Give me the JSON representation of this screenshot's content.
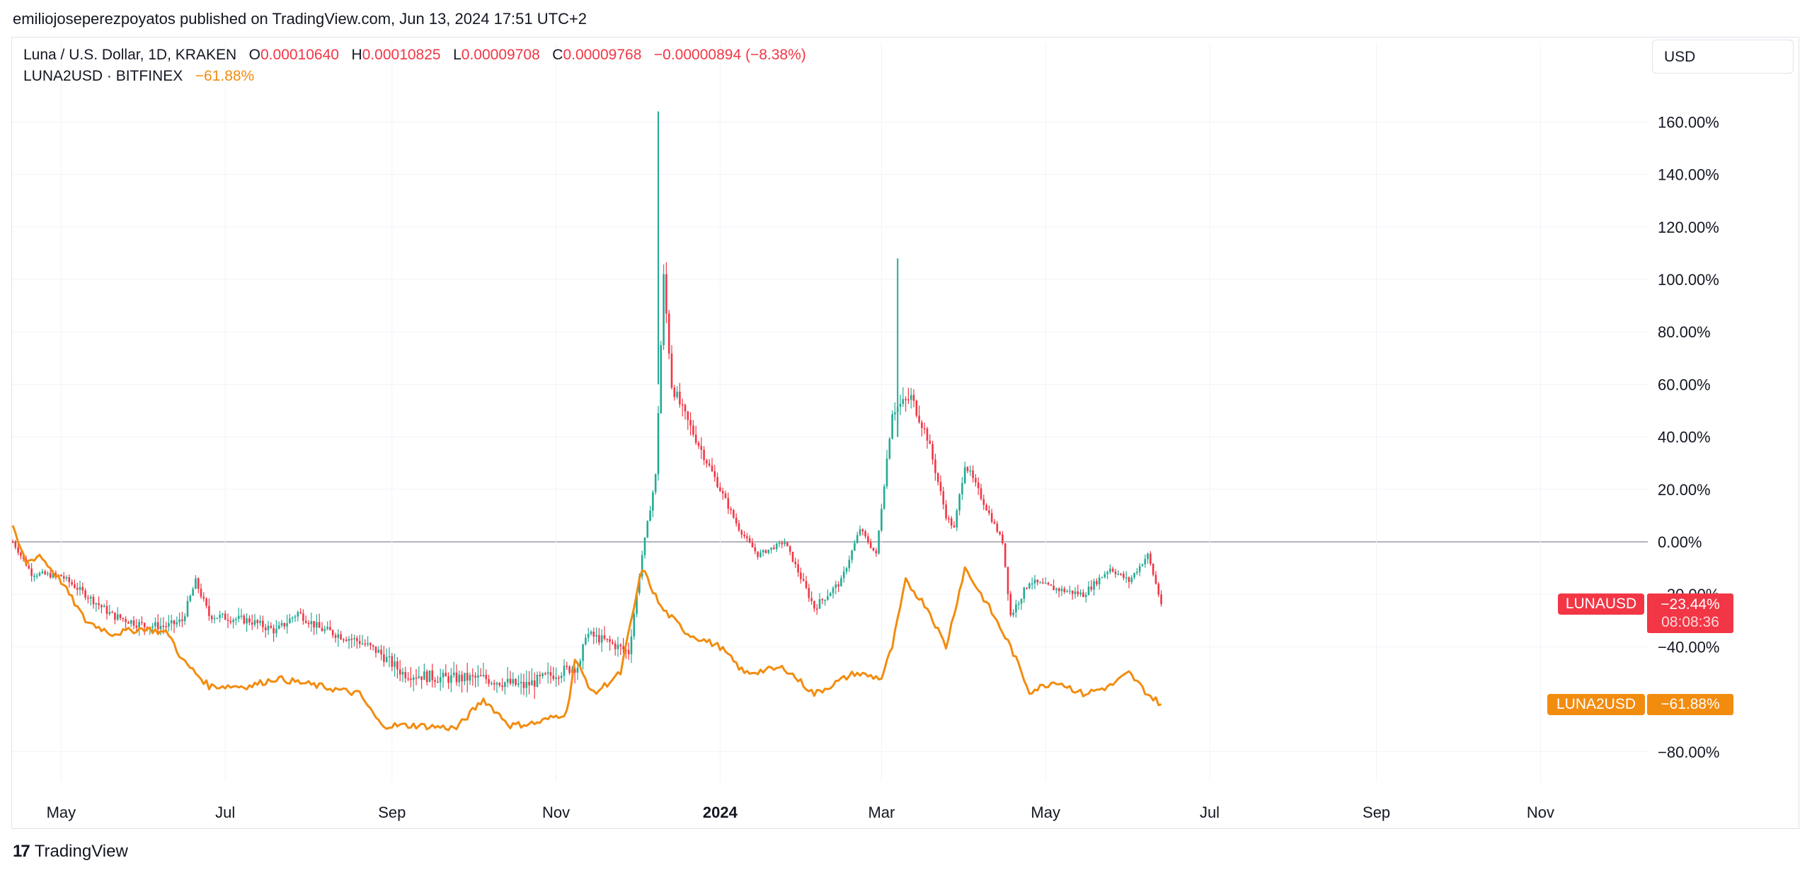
{
  "header": {
    "published": "emiliojoseperezpoyatos published on TradingView.com, Jun 13, 2024 17:51 UTC+2"
  },
  "legend": {
    "main_symbol": "Luna / U.S. Dollar, 1D, KRAKEN",
    "o_label": "O",
    "o_value": "0.00010640",
    "h_label": "H",
    "h_value": "0.00010825",
    "l_label": "L",
    "l_value": "0.00009708",
    "c_label": "C",
    "c_value": "0.00009768",
    "change": "−0.00000894 (−8.38%)",
    "compare_symbol": "LUNA2USD · BITFINEX",
    "compare_change": "−61.88%"
  },
  "currency_label": "USD",
  "tags": {
    "luna_name": "LUNAUSD",
    "luna_value": "−23.44%",
    "luna_countdown": "08:08:36",
    "luna2_name": "LUNA2USD",
    "luna2_value": "−61.88%"
  },
  "footer": {
    "logo_mark": "17",
    "brand": "TradingView"
  },
  "colors": {
    "up": "#22ab94",
    "down": "#f23645",
    "compare": "#f28c0f",
    "zero_line": "#b2b5be",
    "grid": "#f0f3fa"
  },
  "chart_data": {
    "type": "line",
    "y_axis": {
      "ylim": [
        -90,
        170
      ],
      "ticks": [
        160,
        140,
        120,
        100,
        80,
        60,
        40,
        20,
        0,
        -20,
        -40,
        -80
      ],
      "tick_labels": [
        "160.00%",
        "140.00%",
        "120.00%",
        "100.00%",
        "80.00%",
        "60.00%",
        "40.00%",
        "20.00%",
        "0.00%",
        "−20.00%",
        "−40.00%",
        "−80.00%"
      ]
    },
    "x_axis": {
      "range": [
        "2023-04-13",
        "2024-12-28"
      ],
      "ticks": [
        {
          "date": "2023-05-01",
          "label": "May",
          "bold": false
        },
        {
          "date": "2023-07-01",
          "label": "Jul",
          "bold": false
        },
        {
          "date": "2023-09-01",
          "label": "Sep",
          "bold": false
        },
        {
          "date": "2023-11-01",
          "label": "Nov",
          "bold": false
        },
        {
          "date": "2024-01-01",
          "label": "2024",
          "bold": true
        },
        {
          "date": "2024-03-01",
          "label": "Mar",
          "bold": false
        },
        {
          "date": "2024-05-01",
          "label": "May",
          "bold": false
        },
        {
          "date": "2024-07-01",
          "label": "Jul",
          "bold": false
        },
        {
          "date": "2024-09-01",
          "label": "Sep",
          "bold": false
        },
        {
          "date": "2024-11-01",
          "label": "Nov",
          "bold": false
        }
      ]
    },
    "series": [
      {
        "name": "Luna / U.S. Dollar, 1D, KRAKEN",
        "style": "candlestick",
        "points": [
          [
            "2023-04-13",
            0
          ],
          [
            "2023-04-20",
            -12
          ],
          [
            "2023-05-01",
            -13
          ],
          [
            "2023-05-10",
            -20
          ],
          [
            "2023-05-20",
            -28
          ],
          [
            "2023-06-01",
            -32
          ],
          [
            "2023-06-10",
            -32
          ],
          [
            "2023-06-15",
            -30
          ],
          [
            "2023-06-20",
            -15
          ],
          [
            "2023-06-25",
            -28
          ],
          [
            "2023-07-10",
            -30
          ],
          [
            "2023-07-20",
            -34
          ],
          [
            "2023-07-28",
            -27
          ],
          [
            "2023-08-05",
            -33
          ],
          [
            "2023-08-20",
            -38
          ],
          [
            "2023-08-27",
            -42
          ],
          [
            "2023-09-05",
            -50
          ],
          [
            "2023-09-20",
            -52
          ],
          [
            "2023-10-05",
            -52
          ],
          [
            "2023-10-20",
            -55
          ],
          [
            "2023-11-01",
            -50
          ],
          [
            "2023-11-10",
            -47
          ],
          [
            "2023-11-12",
            -35
          ],
          [
            "2023-11-20",
            -38
          ],
          [
            "2023-11-28",
            -42
          ],
          [
            "2023-12-03",
            -5
          ],
          [
            "2023-12-08",
            25
          ],
          [
            "2023-12-11",
            100
          ],
          [
            "2023-12-14",
            60
          ],
          [
            "2023-12-18",
            50
          ],
          [
            "2023-12-25",
            35
          ],
          [
            "2024-01-01",
            20
          ],
          [
            "2024-01-08",
            5
          ],
          [
            "2024-01-15",
            -5
          ],
          [
            "2024-01-25",
            0
          ],
          [
            "2024-02-05",
            -25
          ],
          [
            "2024-02-15",
            -15
          ],
          [
            "2024-02-22",
            5
          ],
          [
            "2024-02-28",
            -5
          ],
          [
            "2024-03-05",
            50
          ],
          [
            "2024-03-12",
            55
          ],
          [
            "2024-03-18",
            40
          ],
          [
            "2024-03-25",
            10
          ],
          [
            "2024-03-28",
            5
          ],
          [
            "2024-04-01",
            30
          ],
          [
            "2024-04-08",
            15
          ],
          [
            "2024-04-15",
            0
          ],
          [
            "2024-04-18",
            -28
          ],
          [
            "2024-04-25",
            -15
          ],
          [
            "2024-05-05",
            -18
          ],
          [
            "2024-05-15",
            -20
          ],
          [
            "2024-05-25",
            -10
          ],
          [
            "2024-06-01",
            -15
          ],
          [
            "2024-06-08",
            -5
          ],
          [
            "2024-06-13",
            -23.44
          ]
        ]
      },
      {
        "name": "LUNA2USD · BITFINEX",
        "style": "line",
        "points": [
          [
            "2023-04-13",
            5
          ],
          [
            "2023-04-18",
            -8
          ],
          [
            "2023-04-23",
            -5
          ],
          [
            "2023-05-01",
            -15
          ],
          [
            "2023-05-10",
            -30
          ],
          [
            "2023-05-20",
            -35
          ],
          [
            "2023-06-01",
            -33
          ],
          [
            "2023-06-10",
            -35
          ],
          [
            "2023-06-15",
            -45
          ],
          [
            "2023-06-25",
            -55
          ],
          [
            "2023-07-10",
            -55
          ],
          [
            "2023-07-20",
            -52
          ],
          [
            "2023-08-05",
            -55
          ],
          [
            "2023-08-20",
            -58
          ],
          [
            "2023-08-28",
            -70
          ],
          [
            "2023-09-10",
            -70
          ],
          [
            "2023-09-25",
            -71
          ],
          [
            "2023-10-05",
            -60
          ],
          [
            "2023-10-15",
            -70
          ],
          [
            "2023-10-25",
            -69
          ],
          [
            "2023-11-05",
            -65
          ],
          [
            "2023-11-08",
            -45
          ],
          [
            "2023-11-15",
            -58
          ],
          [
            "2023-11-25",
            -50
          ],
          [
            "2023-12-03",
            -10
          ],
          [
            "2023-12-10",
            -25
          ],
          [
            "2023-12-20",
            -35
          ],
          [
            "2024-01-01",
            -40
          ],
          [
            "2024-01-10",
            -50
          ],
          [
            "2024-01-25",
            -48
          ],
          [
            "2024-02-05",
            -58
          ],
          [
            "2024-02-20",
            -50
          ],
          [
            "2024-03-01",
            -52
          ],
          [
            "2024-03-05",
            -40
          ],
          [
            "2024-03-10",
            -15
          ],
          [
            "2024-03-18",
            -25
          ],
          [
            "2024-03-25",
            -40
          ],
          [
            "2024-04-01",
            -10
          ],
          [
            "2024-04-10",
            -25
          ],
          [
            "2024-04-18",
            -40
          ],
          [
            "2024-04-25",
            -57
          ],
          [
            "2024-05-05",
            -53
          ],
          [
            "2024-05-15",
            -58
          ],
          [
            "2024-05-25",
            -55
          ],
          [
            "2024-06-01",
            -50
          ],
          [
            "2024-06-08",
            -58
          ],
          [
            "2024-06-13",
            -61.88
          ]
        ]
      }
    ]
  }
}
